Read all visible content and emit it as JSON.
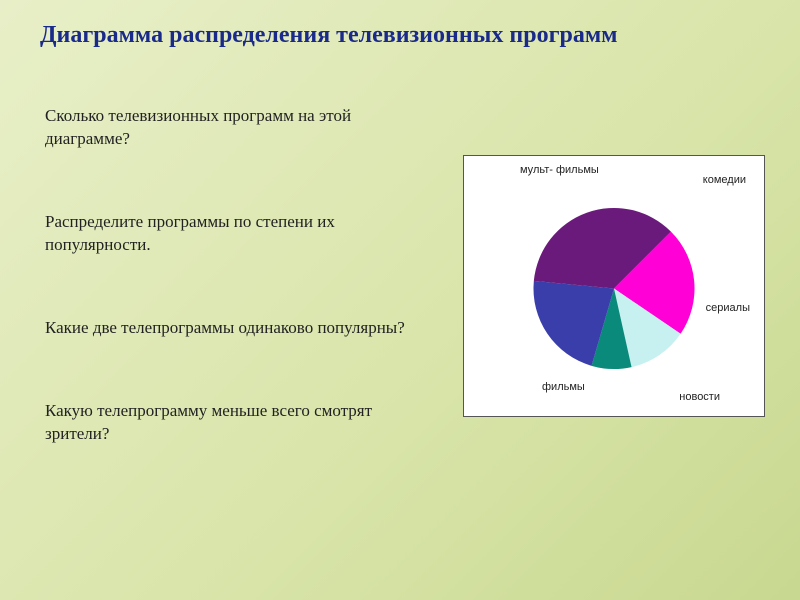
{
  "title": "Диаграмма распределения телевизионных программ",
  "questions": {
    "q1": "Сколько телевизионных программ на этой диаграмме?",
    "q2": "Распределите программы по степени их популярности.",
    "q3": "Какие две телепрограммы одинаково популярны?",
    "q4": "Какую телепрограмму меньше всего смотрят зрители?"
  },
  "chart": {
    "type": "pie",
    "radius": 85,
    "background_color": "#ffffff",
    "border_color": "#555555",
    "label_fontsize": 11,
    "label_font": "Arial",
    "label_color": "#222222",
    "start_angle_deg": -45,
    "direction": "clockwise",
    "slices": [
      {
        "label": "комедии",
        "percent": 22,
        "color": "#ff00d6"
      },
      {
        "label": "сериалы",
        "percent": 12,
        "color": "#c7f0f0"
      },
      {
        "label": "новости",
        "percent": 8,
        "color": "#0a8a7a"
      },
      {
        "label": "фильмы",
        "percent": 22,
        "color": "#3a3eaa"
      },
      {
        "label": "мульт-\nфильмы",
        "percent": 36,
        "color": "#6a1a7a"
      }
    ]
  },
  "title_style": {
    "color": "#1a2a8a",
    "fontsize": 24,
    "weight": "bold"
  },
  "question_style": {
    "color": "#222222",
    "fontsize": 17
  }
}
